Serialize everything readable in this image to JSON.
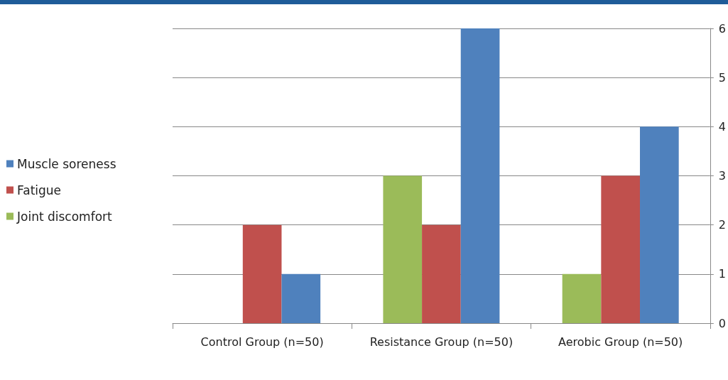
{
  "chart_data": {
    "type": "bar",
    "categories": [
      "Control Group (n=50)",
      "Resistance Group (n=50)",
      "Aerobic Group (n=50)"
    ],
    "series": [
      {
        "name": "Joint discomfort",
        "color": "#9bbb59",
        "values": [
          0,
          3,
          1
        ]
      },
      {
        "name": "Fatigue",
        "color": "#c0504d",
        "values": [
          2,
          2,
          3
        ]
      },
      {
        "name": "Muscle soreness",
        "color": "#4f81bd",
        "values": [
          1,
          6,
          4
        ]
      }
    ],
    "ylim": [
      0,
      6
    ],
    "yticks": [
      0,
      1,
      2,
      3,
      4,
      5,
      6
    ],
    "grid": "y",
    "legend": "left"
  }
}
